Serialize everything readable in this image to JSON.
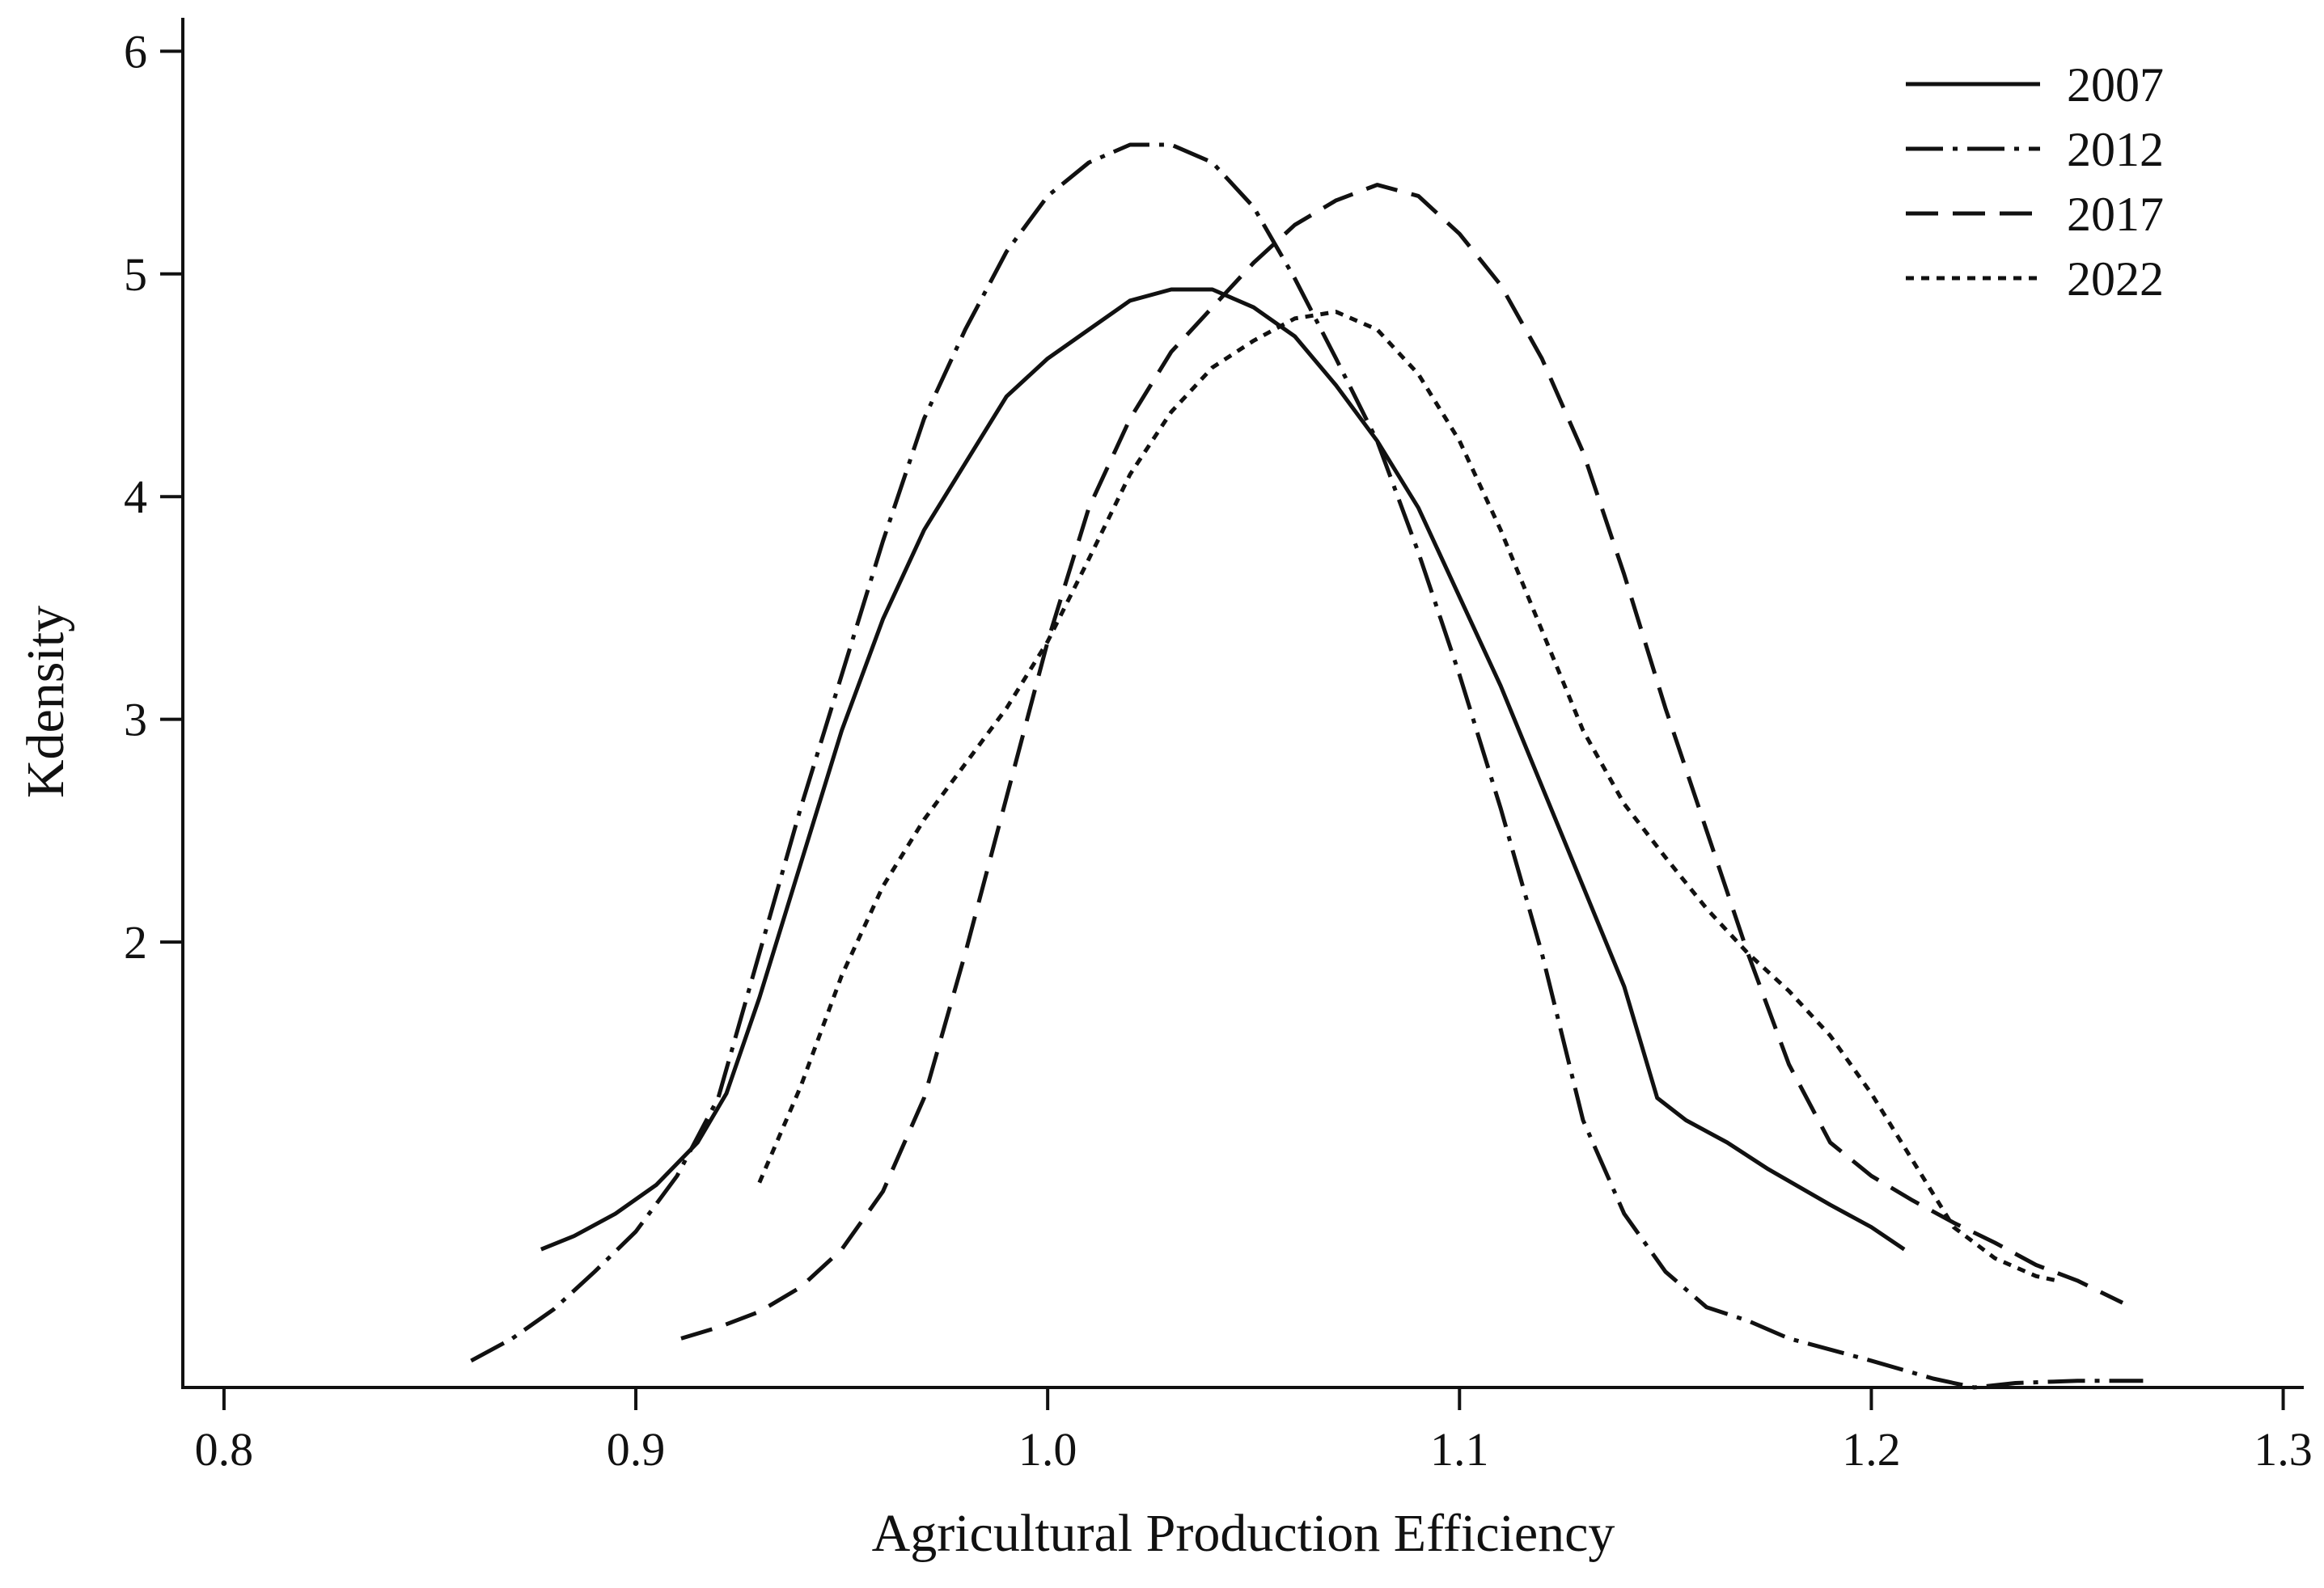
{
  "chart_data": {
    "type": "line",
    "title": "",
    "xlabel": "Agricultural Production Efficiency",
    "ylabel": "Kdensity",
    "xlim": [
      0.79,
      1.305
    ],
    "ylim": [
      0,
      6.15
    ],
    "xticks": [
      0.8,
      0.9,
      1.0,
      1.1,
      1.2,
      1.3
    ],
    "xtick_labels": [
      "0.8",
      "0.9",
      "1.0",
      "1.1",
      "1.2",
      "1.3"
    ],
    "yticks": [
      2,
      3,
      4,
      5,
      6
    ],
    "ytick_labels": [
      "2",
      "3",
      "4",
      "5",
      "6"
    ],
    "grid": false,
    "legend_position": "top-right",
    "series": [
      {
        "name": "2007",
        "line_style": "solid",
        "color": "#111111",
        "points": [
          [
            0.877,
            0.62
          ],
          [
            0.885,
            0.68
          ],
          [
            0.895,
            0.78
          ],
          [
            0.905,
            0.91
          ],
          [
            0.915,
            1.1
          ],
          [
            0.922,
            1.32
          ],
          [
            0.93,
            1.75
          ],
          [
            0.94,
            2.35
          ],
          [
            0.95,
            2.95
          ],
          [
            0.96,
            3.45
          ],
          [
            0.97,
            3.85
          ],
          [
            0.98,
            4.15
          ],
          [
            0.99,
            4.45
          ],
          [
            1.0,
            4.62
          ],
          [
            1.01,
            4.75
          ],
          [
            1.02,
            4.88
          ],
          [
            1.03,
            4.93
          ],
          [
            1.04,
            4.93
          ],
          [
            1.05,
            4.85
          ],
          [
            1.06,
            4.72
          ],
          [
            1.07,
            4.5
          ],
          [
            1.08,
            4.25
          ],
          [
            1.09,
            3.95
          ],
          [
            1.1,
            3.55
          ],
          [
            1.11,
            3.15
          ],
          [
            1.12,
            2.7
          ],
          [
            1.13,
            2.25
          ],
          [
            1.14,
            1.8
          ],
          [
            1.148,
            1.3
          ],
          [
            1.155,
            1.2
          ],
          [
            1.165,
            1.1
          ],
          [
            1.175,
            0.98
          ],
          [
            1.19,
            0.82
          ],
          [
            1.2,
            0.72
          ],
          [
            1.208,
            0.62
          ]
        ]
      },
      {
        "name": "2012",
        "line_style": "dash-dot",
        "color": "#111111",
        "points": [
          [
            0.86,
            0.12
          ],
          [
            0.87,
            0.22
          ],
          [
            0.88,
            0.35
          ],
          [
            0.89,
            0.52
          ],
          [
            0.9,
            0.7
          ],
          [
            0.91,
            0.95
          ],
          [
            0.92,
            1.3
          ],
          [
            0.93,
            1.95
          ],
          [
            0.94,
            2.6
          ],
          [
            0.95,
            3.2
          ],
          [
            0.96,
            3.8
          ],
          [
            0.97,
            4.35
          ],
          [
            0.98,
            4.75
          ],
          [
            0.99,
            5.1
          ],
          [
            1.0,
            5.35
          ],
          [
            1.01,
            5.5
          ],
          [
            1.02,
            5.58
          ],
          [
            1.03,
            5.58
          ],
          [
            1.04,
            5.5
          ],
          [
            1.05,
            5.3
          ],
          [
            1.06,
            4.98
          ],
          [
            1.07,
            4.62
          ],
          [
            1.08,
            4.25
          ],
          [
            1.09,
            3.75
          ],
          [
            1.1,
            3.2
          ],
          [
            1.11,
            2.6
          ],
          [
            1.12,
            1.95
          ],
          [
            1.13,
            1.2
          ],
          [
            1.14,
            0.78
          ],
          [
            1.15,
            0.52
          ],
          [
            1.16,
            0.36
          ],
          [
            1.17,
            0.3
          ],
          [
            1.18,
            0.22
          ],
          [
            1.2,
            0.12
          ],
          [
            1.215,
            0.04
          ],
          [
            1.225,
            0.0
          ],
          [
            1.235,
            0.02
          ],
          [
            1.25,
            0.03
          ],
          [
            1.266,
            0.03
          ]
        ]
      },
      {
        "name": "2017",
        "line_style": "dashed",
        "color": "#111111",
        "points": [
          [
            0.911,
            0.22
          ],
          [
            0.92,
            0.27
          ],
          [
            0.93,
            0.34
          ],
          [
            0.94,
            0.45
          ],
          [
            0.95,
            0.62
          ],
          [
            0.96,
            0.88
          ],
          [
            0.97,
            1.3
          ],
          [
            0.98,
            1.95
          ],
          [
            0.99,
            2.65
          ],
          [
            1.0,
            3.35
          ],
          [
            1.01,
            3.95
          ],
          [
            1.02,
            4.35
          ],
          [
            1.03,
            4.65
          ],
          [
            1.04,
            4.85
          ],
          [
            1.05,
            5.05
          ],
          [
            1.06,
            5.22
          ],
          [
            1.07,
            5.33
          ],
          [
            1.08,
            5.4
          ],
          [
            1.09,
            5.35
          ],
          [
            1.1,
            5.18
          ],
          [
            1.11,
            4.95
          ],
          [
            1.12,
            4.62
          ],
          [
            1.13,
            4.2
          ],
          [
            1.14,
            3.65
          ],
          [
            1.15,
            3.05
          ],
          [
            1.16,
            2.5
          ],
          [
            1.17,
            1.95
          ],
          [
            1.18,
            1.45
          ],
          [
            1.19,
            1.1
          ],
          [
            1.2,
            0.95
          ],
          [
            1.21,
            0.84
          ],
          [
            1.22,
            0.74
          ],
          [
            1.23,
            0.65
          ],
          [
            1.24,
            0.55
          ],
          [
            1.25,
            0.48
          ],
          [
            1.261,
            0.38
          ]
        ]
      },
      {
        "name": "2022",
        "line_style": "dotted",
        "color": "#111111",
        "points": [
          [
            0.93,
            0.92
          ],
          [
            0.94,
            1.35
          ],
          [
            0.95,
            1.85
          ],
          [
            0.96,
            2.25
          ],
          [
            0.97,
            2.55
          ],
          [
            0.98,
            2.8
          ],
          [
            0.99,
            3.05
          ],
          [
            1.0,
            3.35
          ],
          [
            1.01,
            3.72
          ],
          [
            1.02,
            4.1
          ],
          [
            1.03,
            4.38
          ],
          [
            1.04,
            4.58
          ],
          [
            1.05,
            4.7
          ],
          [
            1.06,
            4.8
          ],
          [
            1.07,
            4.83
          ],
          [
            1.08,
            4.75
          ],
          [
            1.09,
            4.55
          ],
          [
            1.1,
            4.25
          ],
          [
            1.11,
            3.85
          ],
          [
            1.12,
            3.4
          ],
          [
            1.13,
            2.95
          ],
          [
            1.14,
            2.62
          ],
          [
            1.15,
            2.38
          ],
          [
            1.16,
            2.15
          ],
          [
            1.17,
            1.95
          ],
          [
            1.18,
            1.78
          ],
          [
            1.19,
            1.58
          ],
          [
            1.2,
            1.32
          ],
          [
            1.21,
            1.02
          ],
          [
            1.22,
            0.72
          ],
          [
            1.23,
            0.58
          ],
          [
            1.24,
            0.5
          ],
          [
            1.245,
            0.48
          ]
        ]
      }
    ]
  }
}
